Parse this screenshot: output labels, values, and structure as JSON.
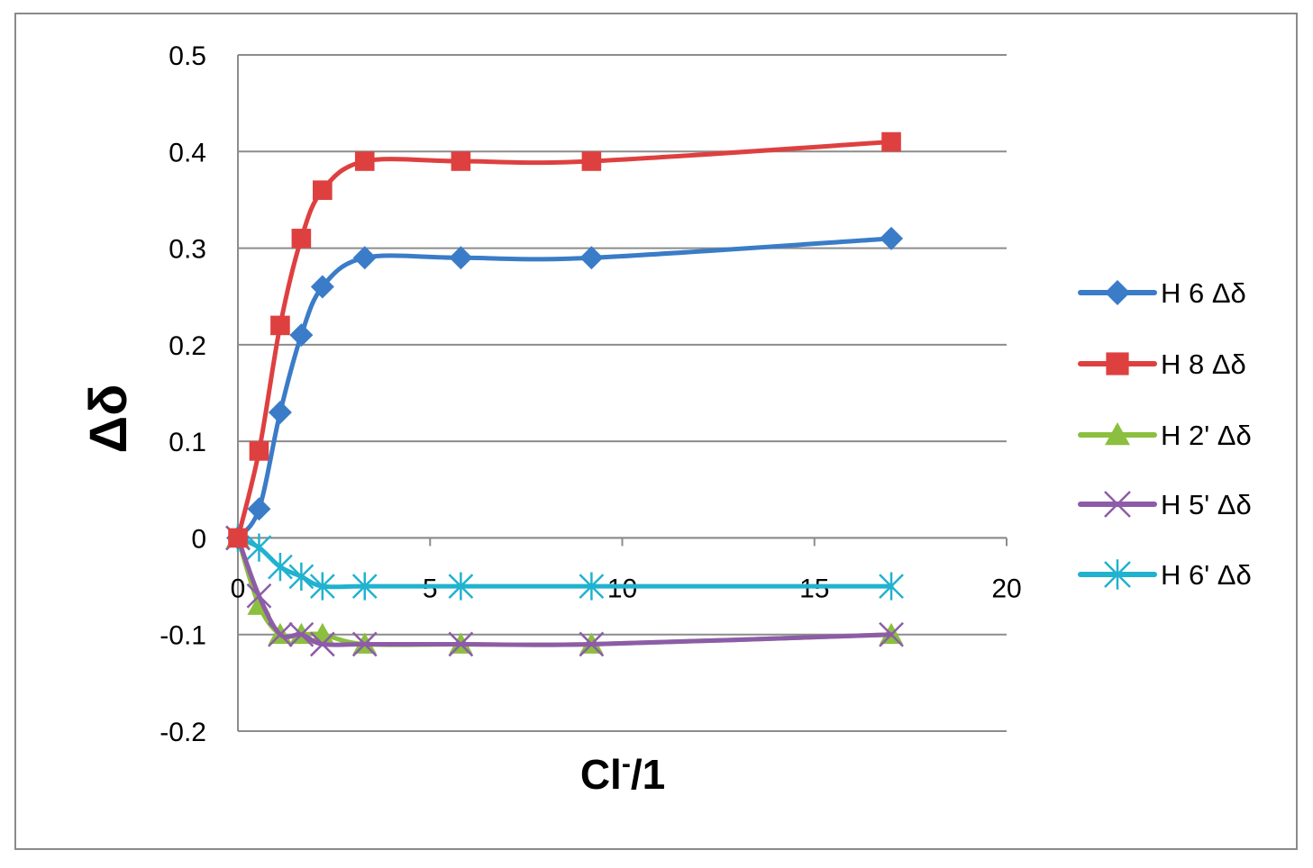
{
  "chart_data": {
    "type": "line",
    "xlabel": "Cl",
    "xlabel_sup": "-",
    "xlabel_suffix": "/1",
    "ylabel": "Δδ",
    "xlim": [
      0,
      20
    ],
    "ylim": [
      -0.2,
      0.5
    ],
    "xticks": [
      "0",
      "5",
      "10",
      "15",
      "20"
    ],
    "yticks": [
      "-0.2",
      "-0.1",
      "0",
      "0.1",
      "0.2",
      "0.3",
      "0.4",
      "0.5"
    ],
    "grid": "horizontal",
    "legend_position": "right",
    "x": [
      0,
      0.55,
      1.1,
      1.65,
      2.2,
      3.3,
      5.8,
      9.2,
      17.0
    ],
    "series": [
      {
        "name": "H 6 Δδ",
        "color": "#3a7cc7",
        "marker": "diamond",
        "values": [
          0.0,
          0.03,
          0.13,
          0.21,
          0.26,
          0.29,
          0.29,
          0.29,
          0.31
        ]
      },
      {
        "name": "H 8 Δδ",
        "color": "#de4040",
        "marker": "square",
        "values": [
          0.0,
          0.09,
          0.22,
          0.31,
          0.36,
          0.39,
          0.39,
          0.39,
          0.41
        ]
      },
      {
        "name": "H 2' Δδ",
        "color": "#8bbf3e",
        "marker": "triangle",
        "values": [
          0.0,
          -0.07,
          -0.1,
          -0.1,
          -0.1,
          -0.11,
          -0.11,
          -0.11,
          -0.1
        ]
      },
      {
        "name": "H 5' Δδ",
        "color": "#8d5ca8",
        "marker": "x",
        "values": [
          0.0,
          -0.06,
          -0.1,
          -0.1,
          -0.11,
          -0.11,
          -0.11,
          -0.11,
          -0.1
        ]
      },
      {
        "name": "H 6' Δδ",
        "color": "#20b2cf",
        "marker": "star",
        "values": [
          0.0,
          -0.01,
          -0.03,
          -0.04,
          -0.05,
          -0.05,
          -0.05,
          -0.05,
          -0.05
        ]
      }
    ]
  }
}
